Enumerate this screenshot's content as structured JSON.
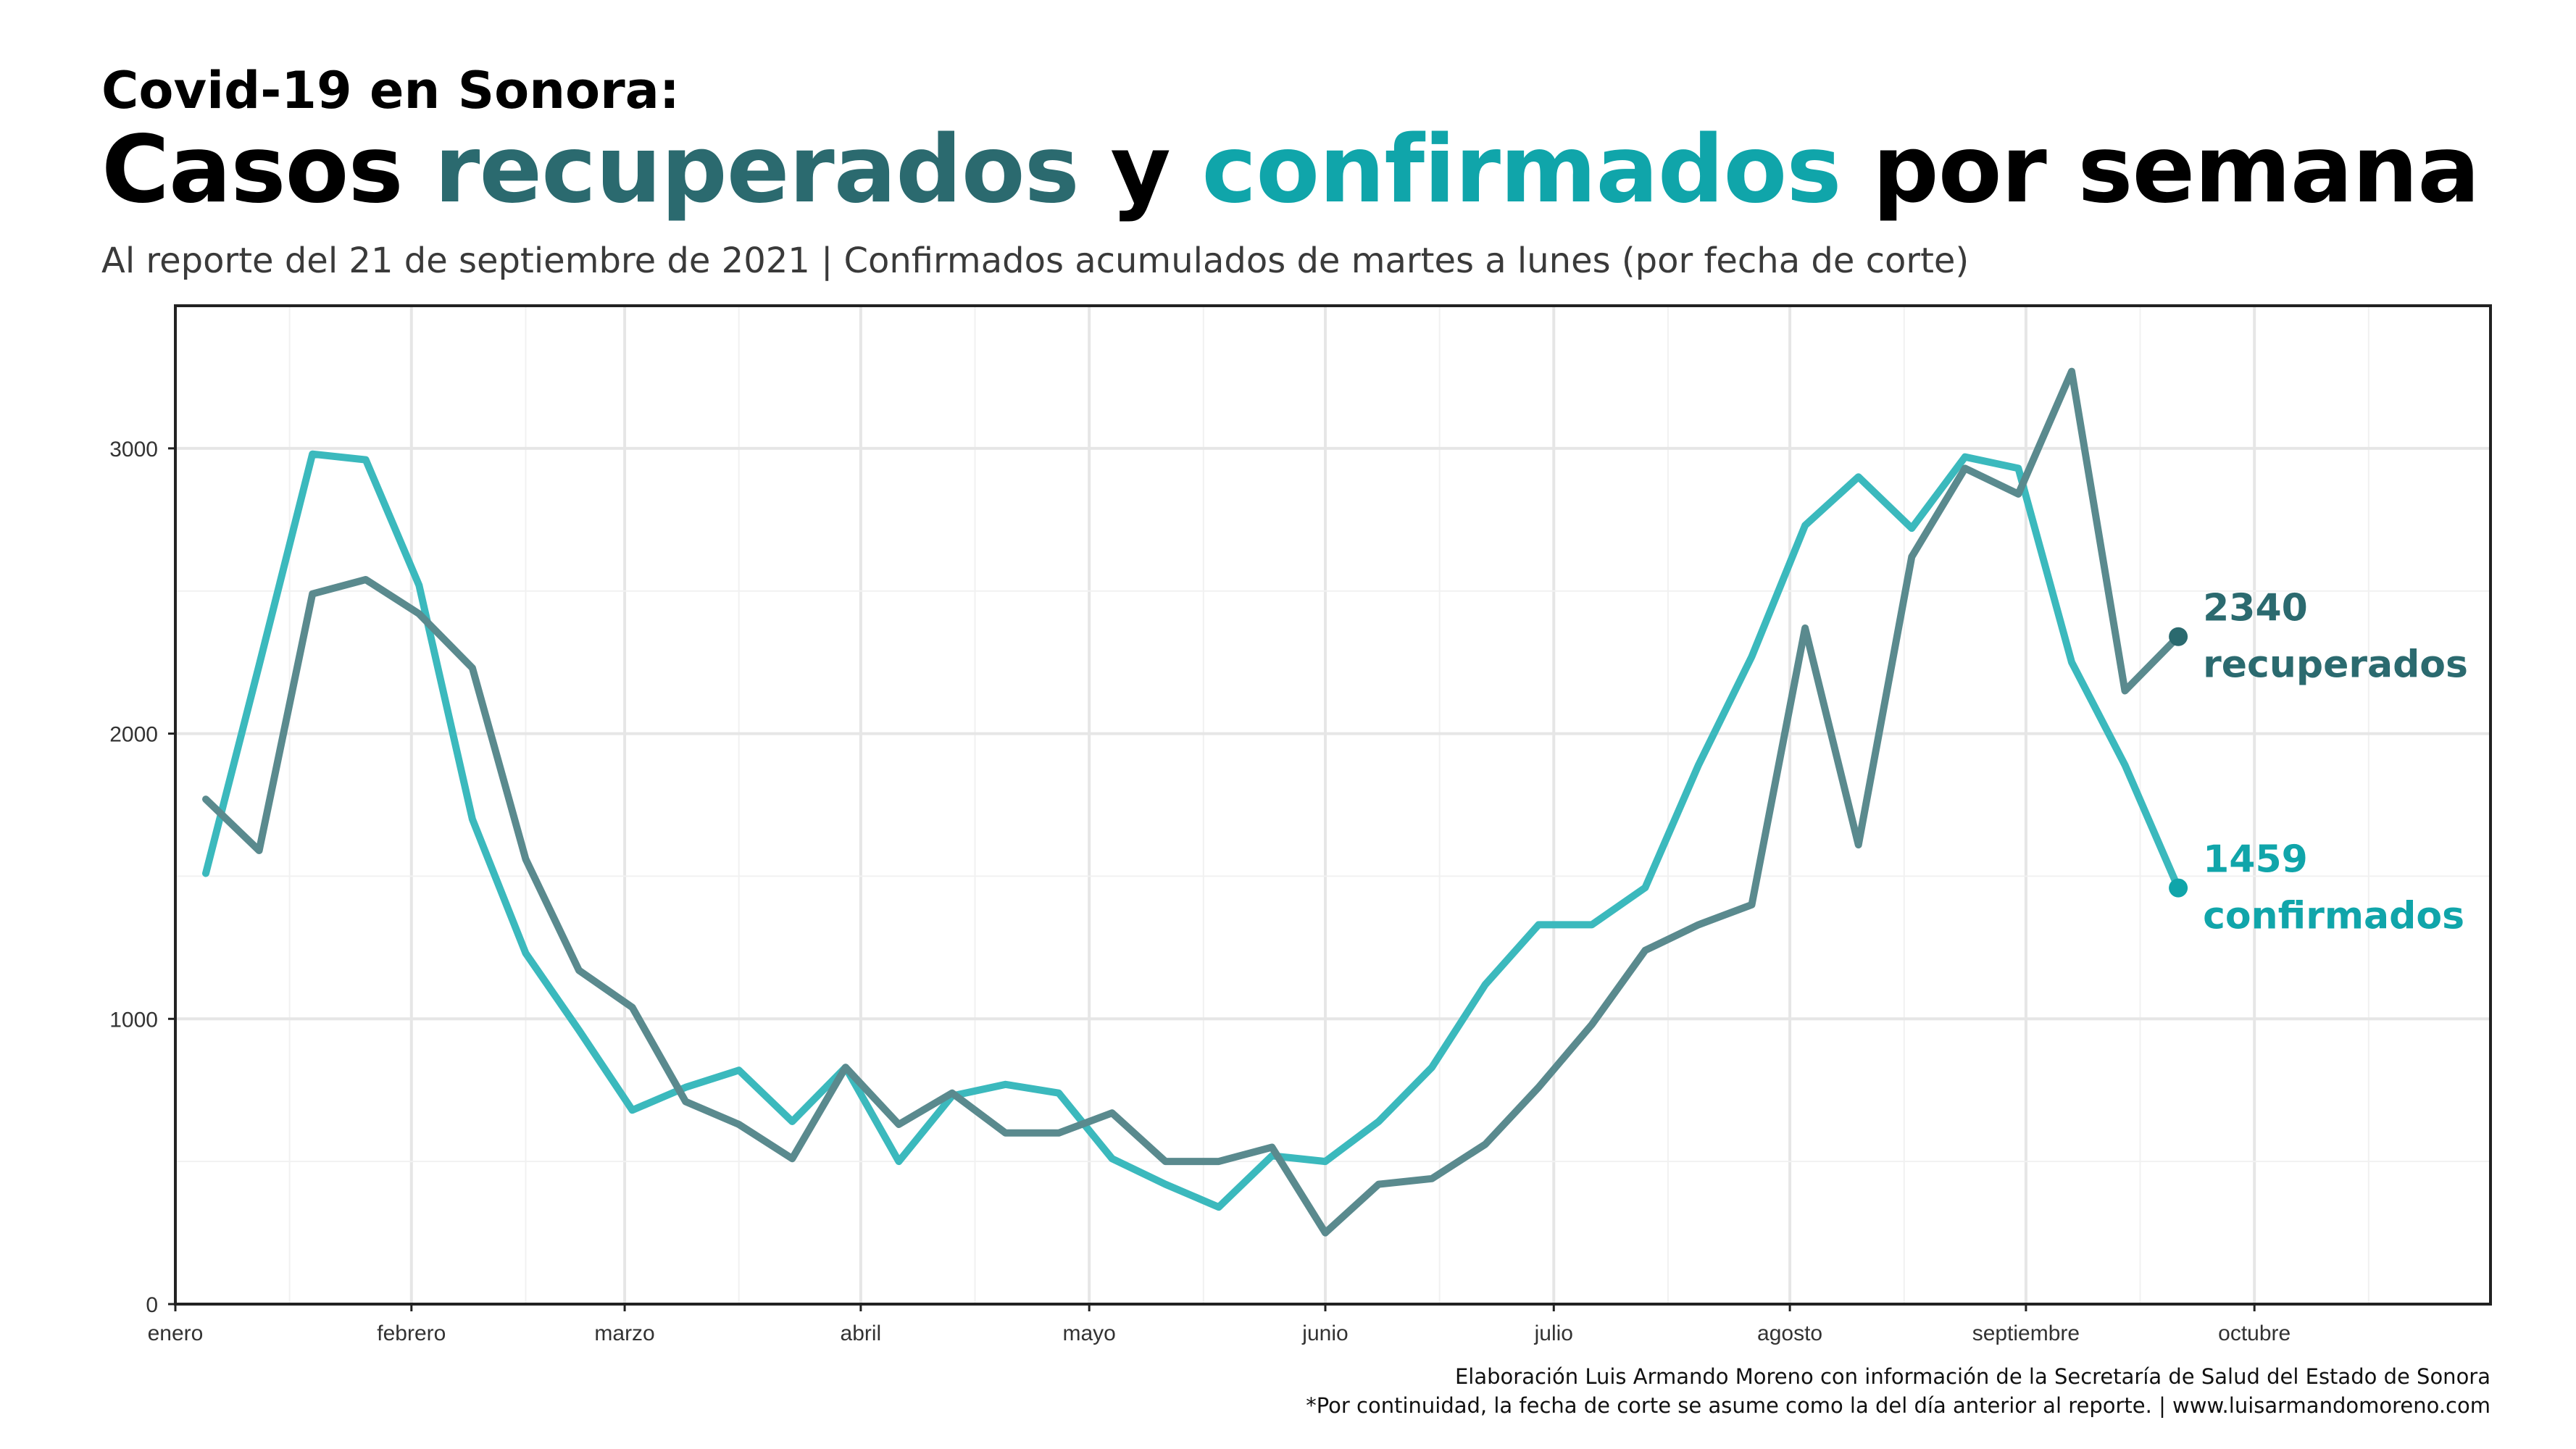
{
  "header": {
    "kicker": "Covid-19 en Sonora:",
    "title_parts": [
      "Casos ",
      "recuperados",
      " y ",
      "confirmados",
      " por semana"
    ],
    "subtitle": "Al reporte del 21 de septiembre de 2021 | Confirmados acumulados de martes a lunes (por fecha de corte)"
  },
  "colors": {
    "recuperados": "#2b6a6f",
    "confirmados": "#10a5aa",
    "recuperados_line": "#5a8a8e",
    "confirmados_line": "#3bb9bd"
  },
  "chart_data": {
    "type": "line",
    "title": "Casos recuperados y confirmados por semana",
    "xlabel": "",
    "ylabel": "",
    "x_axis": {
      "ticks": [
        "enero",
        "febrero",
        "marzo",
        "abril",
        "mayo",
        "junio",
        "julio",
        "agosto",
        "septiembre",
        "octubre"
      ],
      "range": [
        "2021-01-01",
        "2021-11-01"
      ]
    },
    "ylim": [
      0,
      3500
    ],
    "y_ticks": [
      0,
      1000,
      2000,
      3000
    ],
    "grid": true,
    "x": [
      "2021-01-05",
      "2021-01-12",
      "2021-01-19",
      "2021-01-26",
      "2021-02-02",
      "2021-02-09",
      "2021-02-16",
      "2021-02-23",
      "2021-03-02",
      "2021-03-09",
      "2021-03-16",
      "2021-03-23",
      "2021-03-30",
      "2021-04-06",
      "2021-04-13",
      "2021-04-20",
      "2021-04-27",
      "2021-05-04",
      "2021-05-11",
      "2021-05-18",
      "2021-05-25",
      "2021-06-01",
      "2021-06-08",
      "2021-06-15",
      "2021-06-22",
      "2021-06-29",
      "2021-07-06",
      "2021-07-13",
      "2021-07-20",
      "2021-07-27",
      "2021-08-03",
      "2021-08-10",
      "2021-08-17",
      "2021-08-24",
      "2021-08-31",
      "2021-09-07",
      "2021-09-14",
      "2021-09-21"
    ],
    "series": [
      {
        "name": "confirmados",
        "end_value": "1459",
        "end_label": "confirmados",
        "values": [
          1510,
          2240,
          2980,
          2960,
          2520,
          1700,
          1230,
          960,
          680,
          760,
          820,
          640,
          830,
          500,
          730,
          770,
          740,
          510,
          420,
          340,
          520,
          500,
          640,
          830,
          1120,
          1330,
          1330,
          1460,
          1890,
          2270,
          2730,
          2900,
          2720,
          2970,
          2930,
          2250,
          1890,
          1459
        ]
      },
      {
        "name": "recuperados",
        "end_value": "2340",
        "end_label": "recuperados",
        "values": [
          1770,
          1590,
          2490,
          2540,
          2420,
          2230,
          1560,
          1170,
          1040,
          710,
          630,
          510,
          830,
          630,
          740,
          600,
          600,
          670,
          500,
          500,
          550,
          250,
          420,
          440,
          560,
          760,
          980,
          1240,
          1330,
          1400,
          2370,
          1610,
          2620,
          2930,
          2840,
          3270,
          2150,
          2340
        ]
      }
    ]
  },
  "caption": {
    "line1": "Elaboración Luis Armando Moreno con información de la Secretaría de Salud del Estado de Sonora",
    "line2": "*Por continuidad, la fecha de corte se asume como la del día anterior al reporte. | www.luisarmandomoreno.com"
  }
}
